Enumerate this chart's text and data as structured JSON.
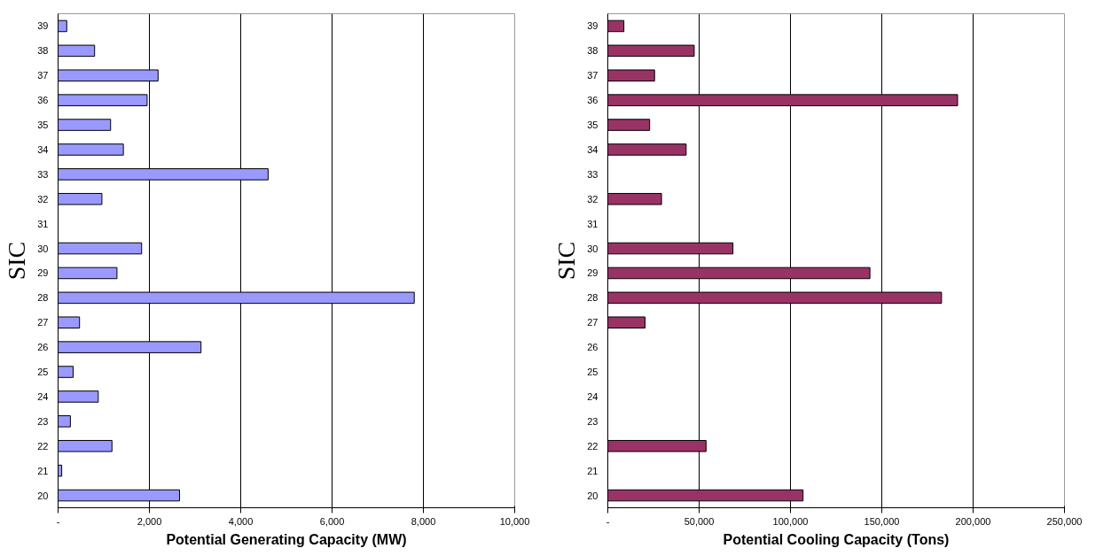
{
  "chart_data": [
    {
      "type": "bar",
      "orientation": "horizontal",
      "xlabel": "Potential Generating Capacity (MW)",
      "ylabel": "SIC",
      "categories": [
        "39",
        "38",
        "37",
        "36",
        "35",
        "34",
        "33",
        "32",
        "31",
        "30",
        "29",
        "28",
        "27",
        "26",
        "25",
        "24",
        "23",
        "22",
        "21",
        "20"
      ],
      "values": [
        190,
        800,
        2190,
        1950,
        1150,
        1430,
        4600,
        960,
        null,
        1830,
        1290,
        7800,
        470,
        3130,
        330,
        880,
        270,
        1180,
        80,
        2660
      ],
      "color": "#9999ff",
      "xlim": [
        0,
        10000
      ],
      "xticks": [
        {
          "value": 0,
          "label": "-"
        },
        {
          "value": 2000,
          "label": "2,000"
        },
        {
          "value": 4000,
          "label": "4,000"
        },
        {
          "value": 6000,
          "label": "6,000"
        },
        {
          "value": 8000,
          "label": "8,000"
        },
        {
          "value": 10000,
          "label": "10,000"
        }
      ],
      "grid": "x"
    },
    {
      "type": "bar",
      "orientation": "horizontal",
      "xlabel": "Potential Cooling Capacity (Tons)",
      "ylabel": "SIC",
      "categories": [
        "39",
        "38",
        "37",
        "36",
        "35",
        "34",
        "33",
        "32",
        "31",
        "30",
        "29",
        "28",
        "27",
        "26",
        "25",
        "24",
        "23",
        "22",
        "21",
        "20"
      ],
      "values": [
        8800,
        47300,
        25600,
        191500,
        22900,
        42900,
        null,
        29400,
        null,
        68500,
        143500,
        182700,
        20400,
        null,
        null,
        null,
        null,
        53800,
        null,
        106900
      ],
      "color": "#993366",
      "xlim": [
        0,
        250000
      ],
      "xticks": [
        {
          "value": 0,
          "label": "-"
        },
        {
          "value": 50000,
          "label": "50,000"
        },
        {
          "value": 100000,
          "label": "100,000"
        },
        {
          "value": 150000,
          "label": "150,000"
        },
        {
          "value": 200000,
          "label": "200,000"
        },
        {
          "value": 250000,
          "label": "250,000"
        }
      ],
      "grid": "x"
    }
  ]
}
